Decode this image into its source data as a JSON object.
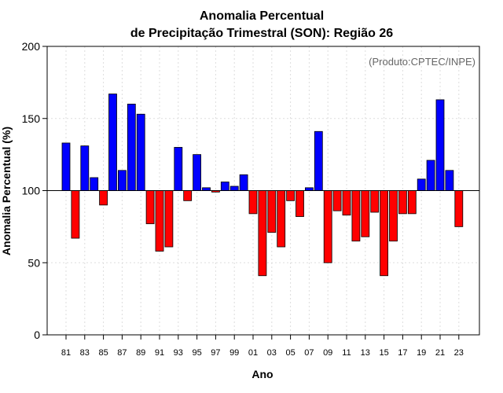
{
  "chart_data": {
    "type": "bar",
    "title_line1": "Anomalia Percentual",
    "title_line2": "de Precipitação Trimestral (SON): Região 26",
    "credit": "(Produto:CPTEC/INPE)",
    "xlabel": "Ano",
    "ylabel": "Anomalia Percentual (%)",
    "ylim": [
      0,
      200
    ],
    "yticks": [
      0,
      50,
      100,
      150,
      200
    ],
    "baseline": 100,
    "grid": true,
    "colors": {
      "above": "#0000ff",
      "below": "#ff0000",
      "outline": "#000000",
      "grid": "#dddddd"
    },
    "categories": [
      "81",
      "82",
      "83",
      "84",
      "85",
      "86",
      "87",
      "88",
      "89",
      "90",
      "91",
      "92",
      "93",
      "94",
      "95",
      "96",
      "97",
      "98",
      "99",
      "00",
      "01",
      "02",
      "03",
      "04",
      "05",
      "06",
      "07",
      "08",
      "09",
      "10",
      "11",
      "12",
      "13",
      "14",
      "15",
      "16",
      "17",
      "18",
      "19",
      "20",
      "21",
      "22",
      "23"
    ],
    "tick_labels": [
      "81",
      "83",
      "85",
      "87",
      "89",
      "91",
      "93",
      "95",
      "97",
      "99",
      "01",
      "03",
      "05",
      "07",
      "09",
      "11",
      "13",
      "15",
      "17",
      "19",
      "21",
      "23"
    ],
    "values": [
      133,
      67,
      131,
      109,
      90,
      167,
      114,
      160,
      153,
      77,
      58,
      61,
      130,
      93,
      125,
      102,
      99,
      106,
      103,
      111,
      84,
      41,
      71,
      61,
      93,
      82,
      102,
      141,
      50,
      86,
      83,
      65,
      68,
      85,
      41,
      65,
      84,
      84,
      108,
      121,
      163,
      114,
      75
    ]
  }
}
